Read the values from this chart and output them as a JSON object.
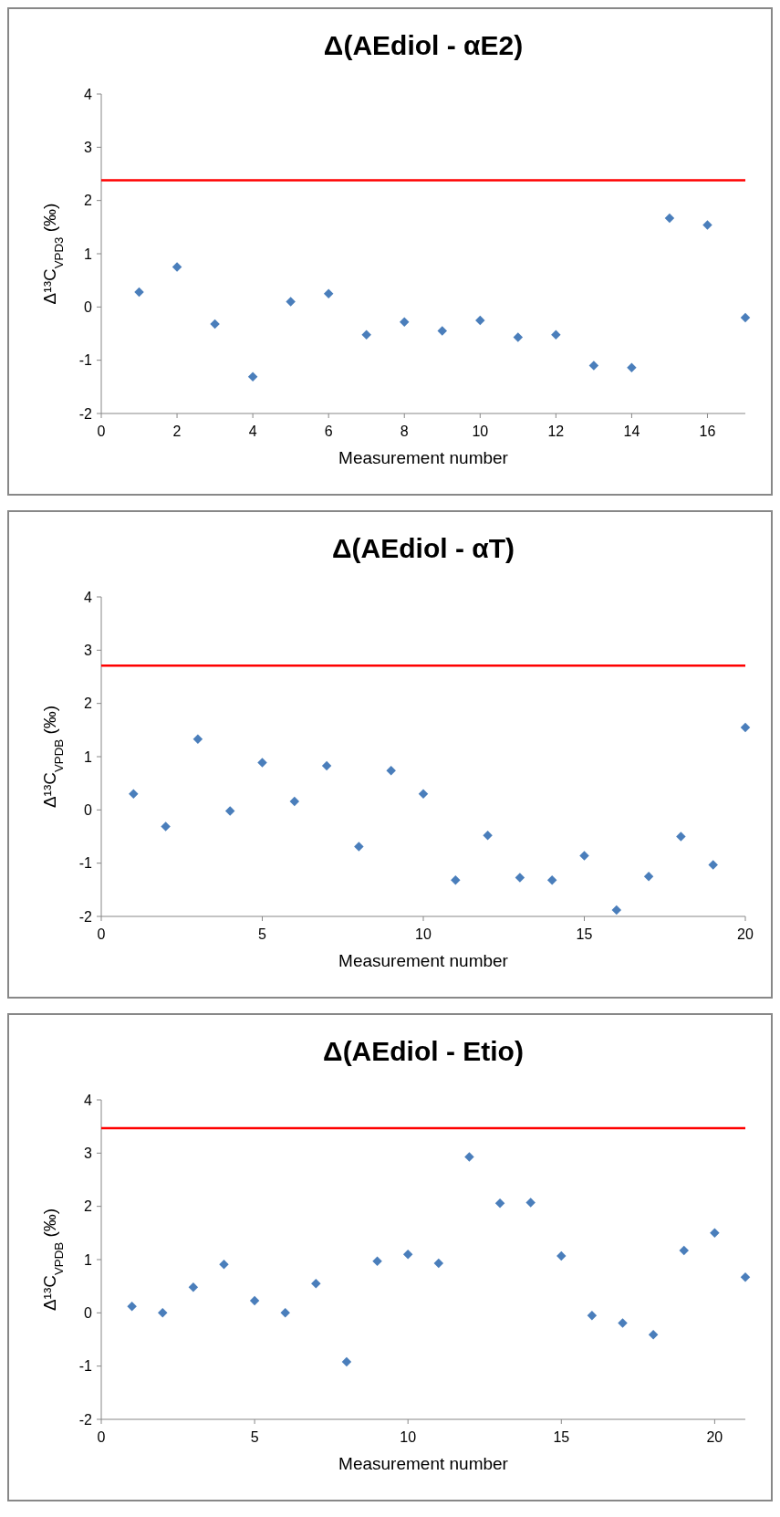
{
  "chart_data": [
    {
      "type": "scatter",
      "title": "Δ(AEdiol - αE2)",
      "xlabel": "Measurement number",
      "ylabel": "Δ¹³C$_{VPD3}$ (‰)",
      "marker": "diamond",
      "x": [
        1,
        2,
        3,
        4,
        5,
        6,
        7,
        8,
        9,
        10,
        11,
        12,
        13,
        14,
        15,
        16,
        17
      ],
      "series": [
        {
          "color": "#4a7ebb",
          "values": [
            0.28,
            0.75,
            -0.32,
            -1.31,
            0.1,
            0.25,
            -0.52,
            -0.28,
            -0.45,
            -0.25,
            -0.57,
            -0.52,
            -1.1,
            -1.14,
            1.67,
            1.54,
            -0.2
          ]
        }
      ],
      "xlim": [
        0,
        17
      ],
      "xticks": [
        0,
        2,
        4,
        6,
        8,
        10,
        12,
        14,
        16
      ],
      "ylim": [
        -2,
        4
      ],
      "yticks": [
        -2,
        -1,
        0,
        1,
        2,
        3,
        4
      ],
      "ref_lines": [
        {
          "axis": "y",
          "value": 2.38,
          "color": "#ff0000"
        }
      ]
    },
    {
      "type": "scatter",
      "title": "Δ(AEdiol - αT)",
      "xlabel": "Measurement number",
      "ylabel": "Δ¹³C$_{VPDB}$ (‰)",
      "marker": "diamond",
      "x": [
        1,
        2,
        3,
        4,
        5,
        6,
        7,
        8,
        9,
        10,
        11,
        12,
        13,
        14,
        15,
        16,
        17,
        18,
        19,
        20
      ],
      "series": [
        {
          "color": "#4a7ebb",
          "values": [
            0.3,
            -0.31,
            1.33,
            -0.02,
            0.89,
            0.16,
            0.83,
            -0.69,
            0.74,
            0.3,
            -1.32,
            -0.48,
            -1.27,
            -1.32,
            -0.86,
            -1.88,
            -1.25,
            -0.5,
            -1.03,
            1.55
          ]
        }
      ],
      "xlim": [
        0,
        20
      ],
      "xticks": [
        0,
        5,
        10,
        15,
        20
      ],
      "ylim": [
        -2,
        4
      ],
      "yticks": [
        -2,
        -1,
        0,
        1,
        2,
        3,
        4
      ],
      "ref_lines": [
        {
          "axis": "y",
          "value": 2.71,
          "color": "#ff0000"
        }
      ]
    },
    {
      "type": "scatter",
      "title": "Δ(AEdiol - Etio)",
      "xlabel": "Measurement number",
      "ylabel": "Δ¹³C$_{VPDB}$ (‰)",
      "marker": "diamond",
      "x": [
        1,
        2,
        3,
        4,
        5,
        6,
        7,
        8,
        9,
        10,
        11,
        12,
        13,
        14,
        15,
        16,
        17,
        18,
        19,
        20,
        21
      ],
      "series": [
        {
          "color": "#4a7ebb",
          "values": [
            0.12,
            0,
            0.48,
            0.91,
            0.23,
            0,
            0.55,
            -0.92,
            0.97,
            1.1,
            0.93,
            2.93,
            2.06,
            2.07,
            1.07,
            -0.05,
            -0.19,
            -0.41,
            1.17,
            1.5,
            0.67
          ]
        }
      ],
      "xlim": [
        0,
        21
      ],
      "xticks": [
        0,
        5,
        10,
        15,
        20
      ],
      "ylim": [
        -2,
        4
      ],
      "yticks": [
        -2,
        -1,
        0,
        1,
        2,
        3,
        4
      ],
      "ref_lines": [
        {
          "axis": "y",
          "value": 3.47,
          "color": "#ff0000"
        }
      ]
    }
  ]
}
